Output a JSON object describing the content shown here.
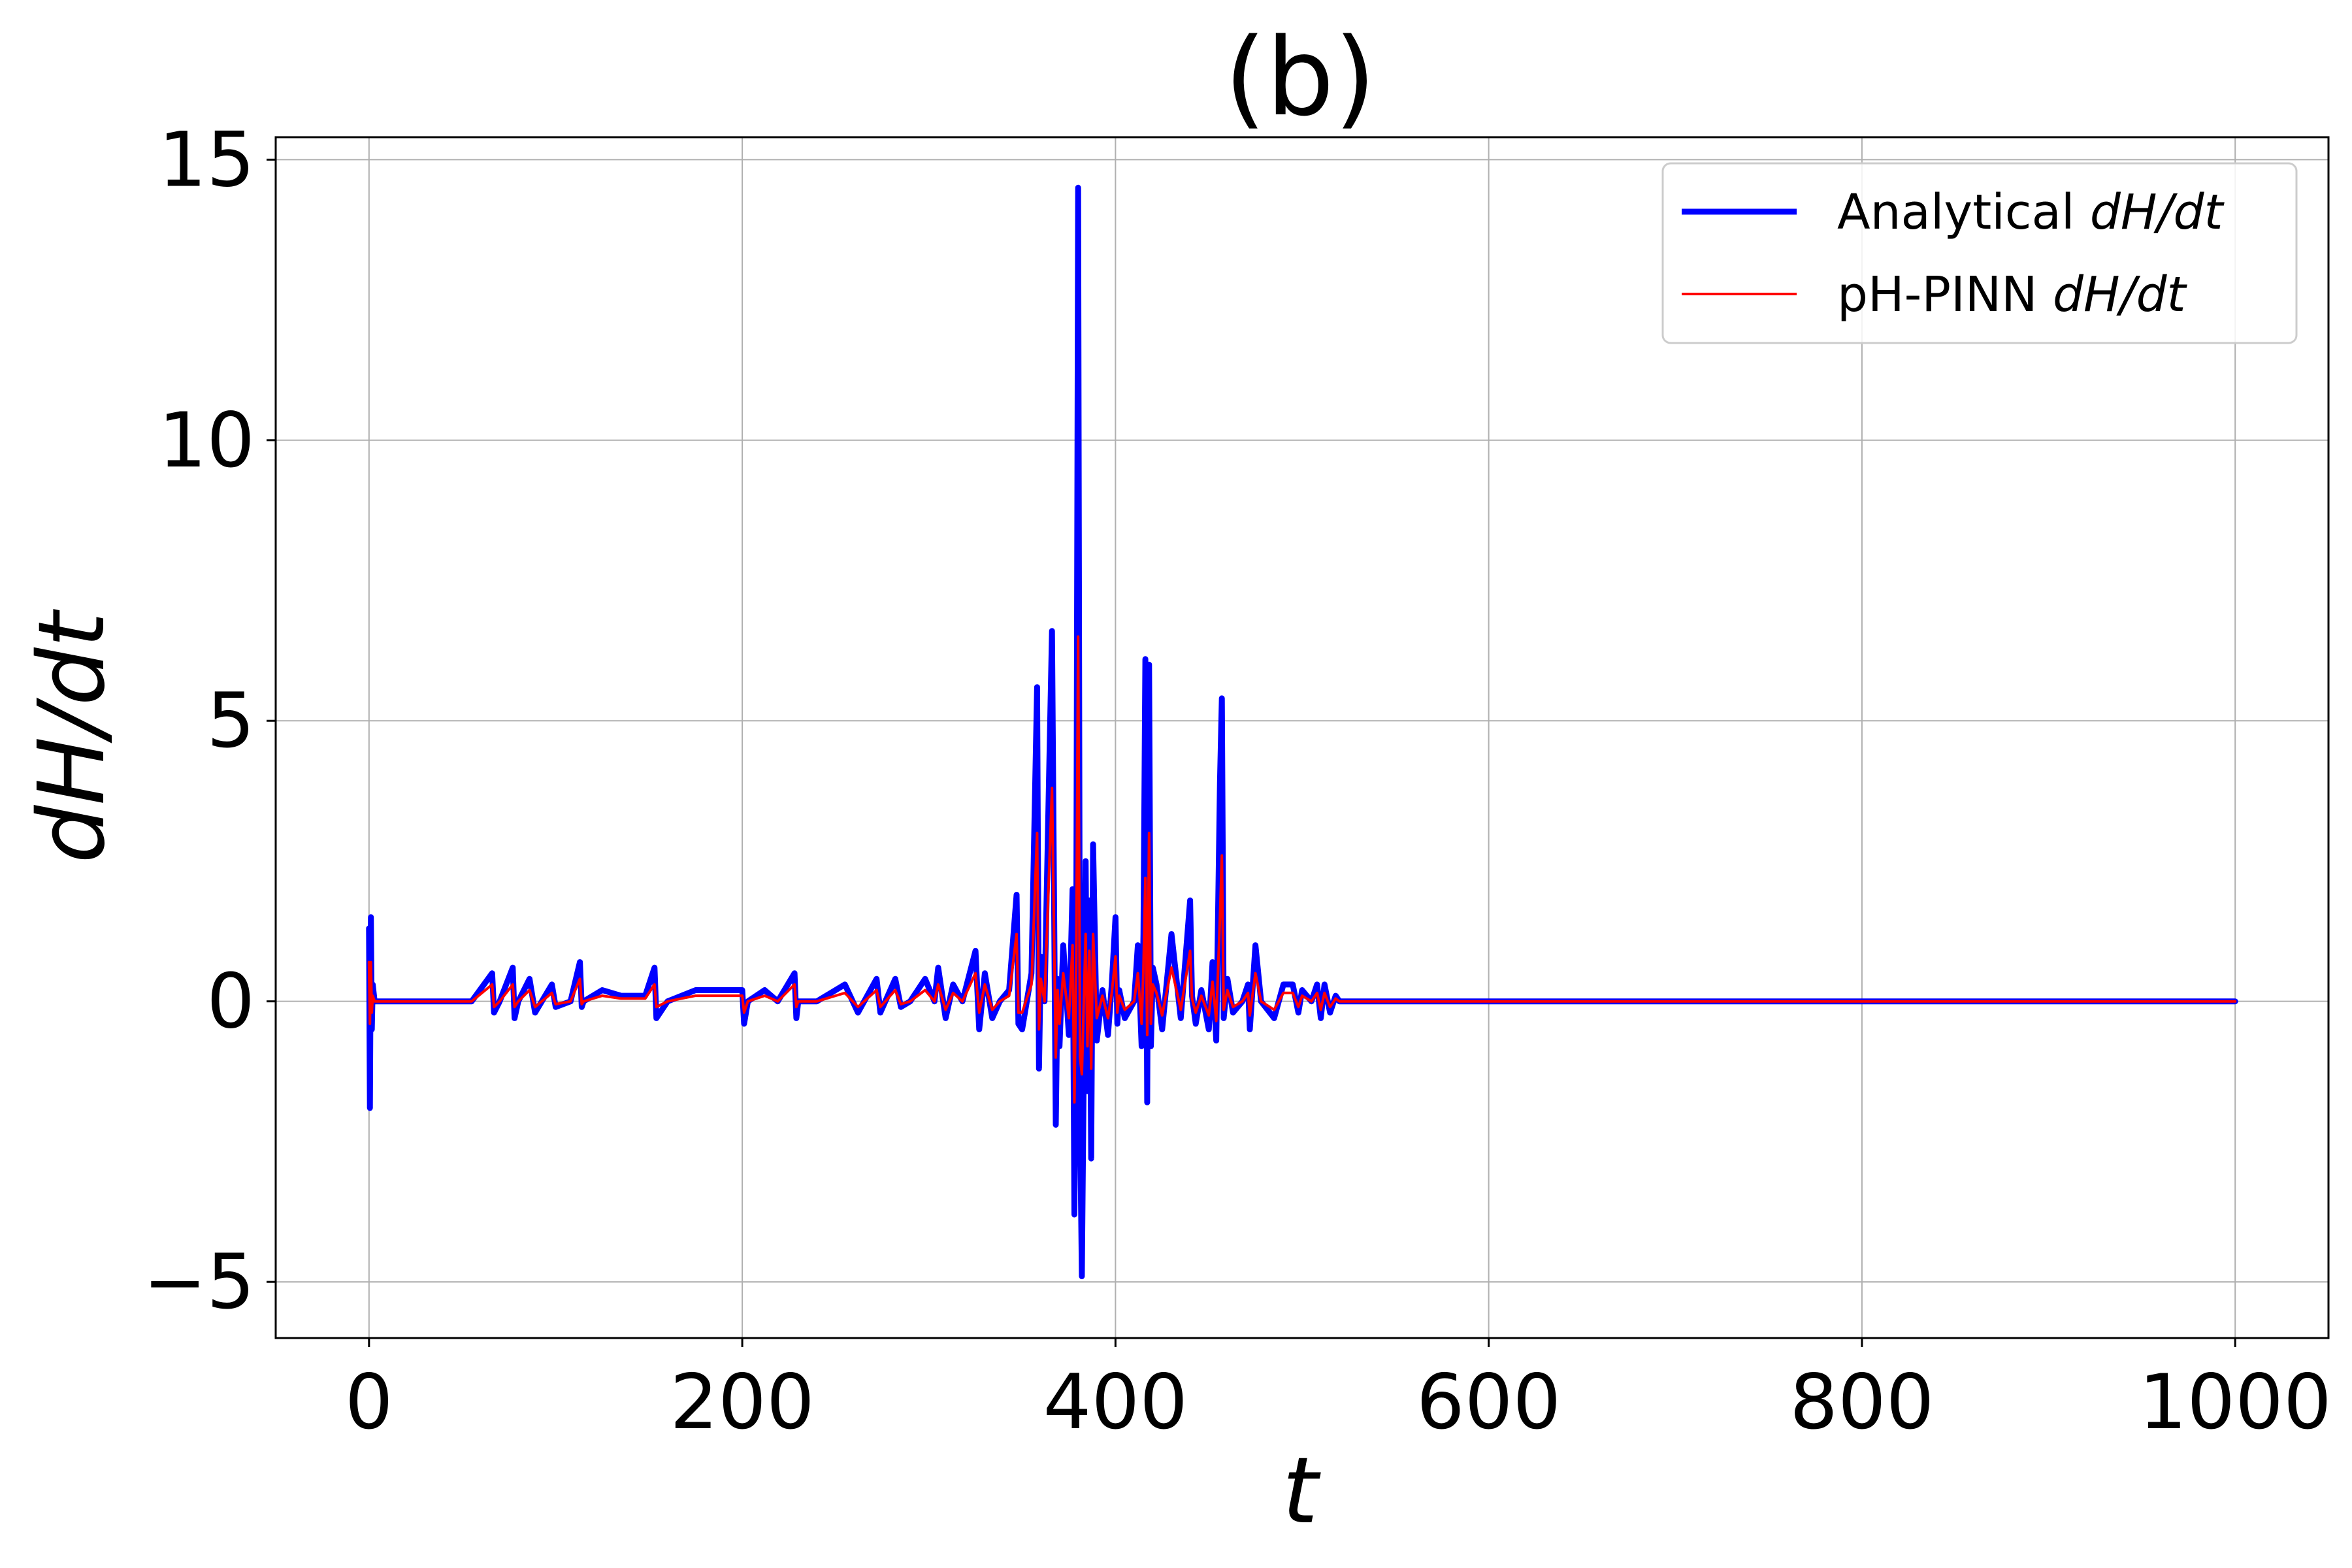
{
  "chart_data": {
    "type": "line",
    "title": "(b)",
    "xlabel": "t",
    "ylabel": "dH/dt",
    "xlim": [
      -50,
      1050
    ],
    "ylim": [
      -6,
      15.4
    ],
    "xticks": [
      0,
      200,
      400,
      600,
      800,
      1000
    ],
    "xtick_labels": [
      "0",
      "200",
      "400",
      "600",
      "800",
      "1000"
    ],
    "yticks": [
      -5,
      0,
      5,
      10,
      15
    ],
    "ytick_labels": [
      "−5",
      "0",
      "5",
      "10",
      "15"
    ],
    "grid": true,
    "legend_position": "top-right",
    "legend": {
      "analytical_prefix": "Analytical ",
      "pinn_prefix": "pH-PINN ",
      "math": "dH/dt"
    },
    "series": [
      {
        "name": "Analytical dH/dt",
        "color": "#0000ff",
        "x": [
          0,
          0.5,
          1,
          1.5,
          2,
          3,
          20,
          35,
          55,
          66,
          67,
          70,
          77,
          78,
          80,
          86,
          89,
          98,
          100,
          108,
          113,
          114,
          115,
          125,
          135,
          148,
          153,
          154,
          160,
          175,
          188,
          200,
          201,
          203,
          212,
          219,
          228,
          229,
          230,
          240,
          255,
          262,
          272,
          274,
          282,
          285,
          290,
          298,
          303,
          305,
          309,
          313,
          318,
          325,
          327,
          330,
          334,
          338,
          343,
          347,
          348,
          350,
          355,
          358,
          359,
          360,
          362,
          366,
          368,
          369,
          370,
          372,
          375,
          377,
          378,
          379,
          380,
          381,
          382,
          384,
          385,
          386,
          387,
          388,
          390,
          393,
          396,
          398,
          400,
          401,
          402,
          405,
          410,
          412,
          414,
          415,
          416,
          417,
          418,
          419,
          420,
          422,
          425,
          430,
          435,
          440,
          441,
          443,
          446,
          450,
          452,
          454,
          456,
          457,
          458,
          460,
          463,
          468,
          471,
          472,
          475,
          478,
          485,
          490,
          495,
          498,
          500,
          505,
          508,
          510,
          512,
          515,
          518,
          520,
          540,
          600,
          700,
          800,
          900,
          1000
        ],
        "y": [
          1.3,
          -1.9,
          1.5,
          -0.5,
          0.3,
          0,
          0,
          0,
          0,
          0.5,
          -0.2,
          0,
          0.6,
          -0.3,
          0,
          0.4,
          -0.2,
          0.3,
          -0.1,
          0,
          0.7,
          -0.1,
          0,
          0.2,
          0.1,
          0.1,
          0.6,
          -0.3,
          0,
          0.2,
          0.2,
          0.2,
          -0.4,
          0,
          0.2,
          0,
          0.5,
          -0.3,
          0,
          0,
          0.3,
          -0.2,
          0.4,
          -0.2,
          0.4,
          -0.1,
          0,
          0.4,
          0,
          0.6,
          -0.3,
          0.3,
          0,
          0.9,
          -0.5,
          0.5,
          -0.3,
          0,
          0.2,
          1.9,
          -0.4,
          -0.5,
          0.5,
          5.6,
          -1.2,
          0.8,
          0,
          6.6,
          -2.2,
          0.4,
          -0.8,
          1,
          -0.6,
          2,
          -3.8,
          1.5,
          14.5,
          -2,
          -4.9,
          2.5,
          -1.6,
          1.8,
          -2.8,
          2.8,
          -0.7,
          0.2,
          -0.6,
          0.3,
          1.5,
          -0.4,
          0.2,
          -0.3,
          0,
          1,
          -0.8,
          1.2,
          6.1,
          -1.8,
          6,
          -0.8,
          0.6,
          0.3,
          -0.5,
          1.2,
          -0.3,
          1.8,
          0.1,
          -0.4,
          0.2,
          -0.5,
          0.7,
          -0.7,
          3.9,
          5.4,
          -0.3,
          0.4,
          -0.2,
          0,
          0.3,
          -0.5,
          1,
          0,
          -0.3,
          0.3,
          0.3,
          -0.2,
          0.2,
          0,
          0.3,
          -0.3,
          0.3,
          -0.2,
          0.1,
          0,
          0,
          0,
          0,
          0,
          0,
          0
        ]
      },
      {
        "name": "pH-PINN dH/dt",
        "color": "#ff0000",
        "x": [
          0,
          0.5,
          1,
          1.5,
          2,
          3,
          20,
          35,
          55,
          66,
          67,
          70,
          77,
          78,
          80,
          86,
          89,
          98,
          100,
          108,
          113,
          114,
          115,
          125,
          135,
          148,
          153,
          154,
          160,
          175,
          188,
          200,
          201,
          203,
          212,
          219,
          228,
          229,
          230,
          240,
          255,
          262,
          272,
          274,
          282,
          285,
          290,
          298,
          303,
          305,
          309,
          313,
          318,
          325,
          327,
          330,
          334,
          338,
          343,
          347,
          348,
          350,
          355,
          358,
          359,
          360,
          362,
          366,
          368,
          369,
          370,
          372,
          375,
          377,
          378,
          379,
          380,
          381,
          382,
          384,
          385,
          386,
          387,
          388,
          390,
          393,
          396,
          398,
          400,
          401,
          402,
          405,
          410,
          412,
          414,
          415,
          416,
          417,
          418,
          419,
          420,
          422,
          425,
          430,
          435,
          440,
          441,
          443,
          446,
          450,
          452,
          454,
          456,
          457,
          458,
          460,
          463,
          468,
          471,
          472,
          475,
          478,
          485,
          490,
          495,
          498,
          500,
          505,
          508,
          510,
          512,
          515,
          518,
          520,
          540,
          600,
          700,
          800,
          900,
          1000
        ],
        "y": [
          0.7,
          -0.4,
          0.7,
          -0.2,
          0.1,
          0,
          0,
          0,
          0,
          0.3,
          -0.1,
          0,
          0.3,
          -0.1,
          0,
          0.2,
          -0.1,
          0.15,
          -0.05,
          0,
          0.4,
          -0.05,
          0,
          0.1,
          0.05,
          0.05,
          0.3,
          -0.1,
          0,
          0.1,
          0.1,
          0.1,
          -0.2,
          0,
          0.1,
          0,
          0.3,
          -0.1,
          0,
          0,
          0.15,
          -0.1,
          0.2,
          -0.1,
          0.2,
          -0.05,
          0,
          0.2,
          0,
          0.3,
          -0.15,
          0.15,
          0,
          0.5,
          -0.2,
          0.3,
          -0.15,
          0,
          0.1,
          1.2,
          -0.2,
          -0.2,
          0.3,
          3,
          -0.5,
          0.4,
          0,
          3.8,
          -1,
          0.2,
          -0.4,
          0.5,
          -0.3,
          1,
          -1.8,
          0.8,
          6.5,
          -1,
          -1.3,
          1.2,
          -0.8,
          0.9,
          -1.2,
          1.2,
          -0.3,
          0.1,
          -0.3,
          0.15,
          0.8,
          -0.2,
          0.1,
          -0.15,
          0,
          0.5,
          -0.4,
          0.6,
          2.2,
          -0.6,
          3,
          -0.4,
          0.3,
          0.15,
          -0.25,
          0.6,
          -0.15,
          0.9,
          0.05,
          -0.2,
          0.1,
          -0.25,
          0.35,
          -0.35,
          1.5,
          2.6,
          -0.15,
          0.2,
          -0.1,
          0,
          0.15,
          -0.25,
          0.5,
          0,
          -0.15,
          0.15,
          0.15,
          -0.1,
          0.1,
          0,
          0.15,
          -0.15,
          0.15,
          -0.1,
          0.05,
          0,
          0,
          0,
          0,
          0,
          0,
          0
        ]
      }
    ]
  }
}
